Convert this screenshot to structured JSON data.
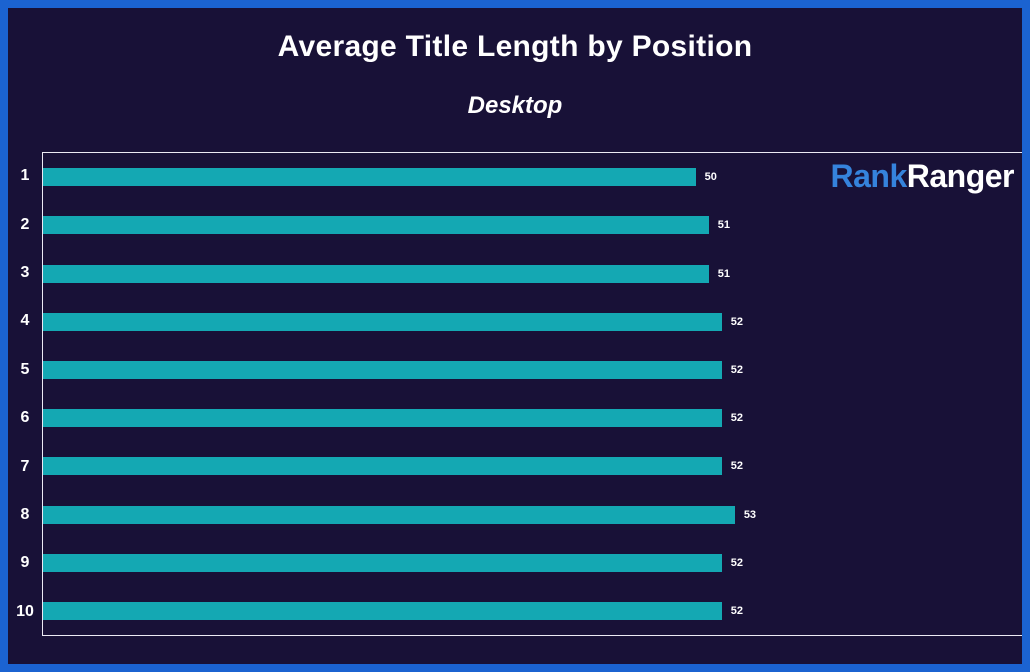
{
  "frame": {
    "border_color": "#1b63d1",
    "background_color": "#181137"
  },
  "header": {
    "title": "Average Title Length by Position",
    "subtitle": "Desktop"
  },
  "logo": {
    "part1": "Rank",
    "part2": "Ranger",
    "part1_color": "#3583dc",
    "part2_color": "#ffffff"
  },
  "chart_data": {
    "type": "bar",
    "orientation": "horizontal",
    "title": "Average Title Length by Position",
    "subtitle": "Desktop",
    "categories": [
      "1",
      "2",
      "3",
      "4",
      "5",
      "6",
      "7",
      "8",
      "9",
      "10"
    ],
    "values": [
      50,
      51,
      51,
      52,
      52,
      52,
      52,
      53,
      52,
      52
    ],
    "value_labels": [
      "50",
      "51",
      "51",
      "52",
      "52",
      "52",
      "52",
      "53",
      "52",
      "52"
    ],
    "xlabel": "",
    "ylabel": "",
    "xlim": [
      0,
      75
    ],
    "grid": false,
    "legend": false,
    "bar_color": "#14a8b3",
    "label_color": "#ffffff",
    "plot_border_color": "#eceaf4"
  }
}
